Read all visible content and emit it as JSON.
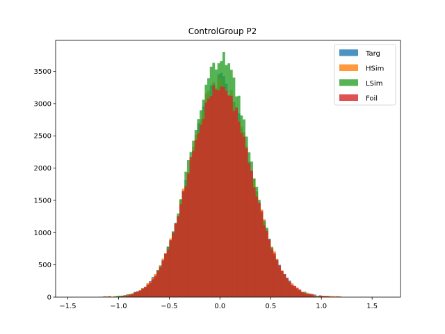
{
  "chart_data": {
    "type": "histogram",
    "title": "ControlGroup P2",
    "xlabel": "",
    "ylabel": "",
    "xlim": [
      -1.62,
      1.78
    ],
    "ylim": [
      0,
      3980
    ],
    "xticks": [
      "−1.5",
      "−1.0",
      "−0.5",
      "0.0",
      "0.5",
      "1.0",
      "1.5"
    ],
    "yticks": [
      "0",
      "500",
      "1000",
      "1500",
      "2000",
      "2500",
      "3000",
      "3500"
    ],
    "grid": false,
    "legend_position": "top-right",
    "bin_range": [
      -1.2,
      1.2
    ],
    "bin_width": 0.025,
    "series": [
      {
        "name": "Targ",
        "color": "#1f77b4",
        "opacity": 0.8,
        "mean": 0.0,
        "std": 0.3,
        "peak": 3350,
        "seed": 11
      },
      {
        "name": "HSim",
        "color": "#ff7f0e",
        "opacity": 0.8,
        "mean": 0.0,
        "std": 0.3,
        "peak": 3380,
        "seed": 23
      },
      {
        "name": "LSim",
        "color": "#2ca02c",
        "opacity": 0.8,
        "mean": 0.0,
        "std": 0.29,
        "peak": 3700,
        "seed": 37
      },
      {
        "name": "Foil",
        "color": "#d62728",
        "opacity": 0.8,
        "mean": 0.0,
        "std": 0.3,
        "peak": 3300,
        "seed": 53
      }
    ]
  }
}
